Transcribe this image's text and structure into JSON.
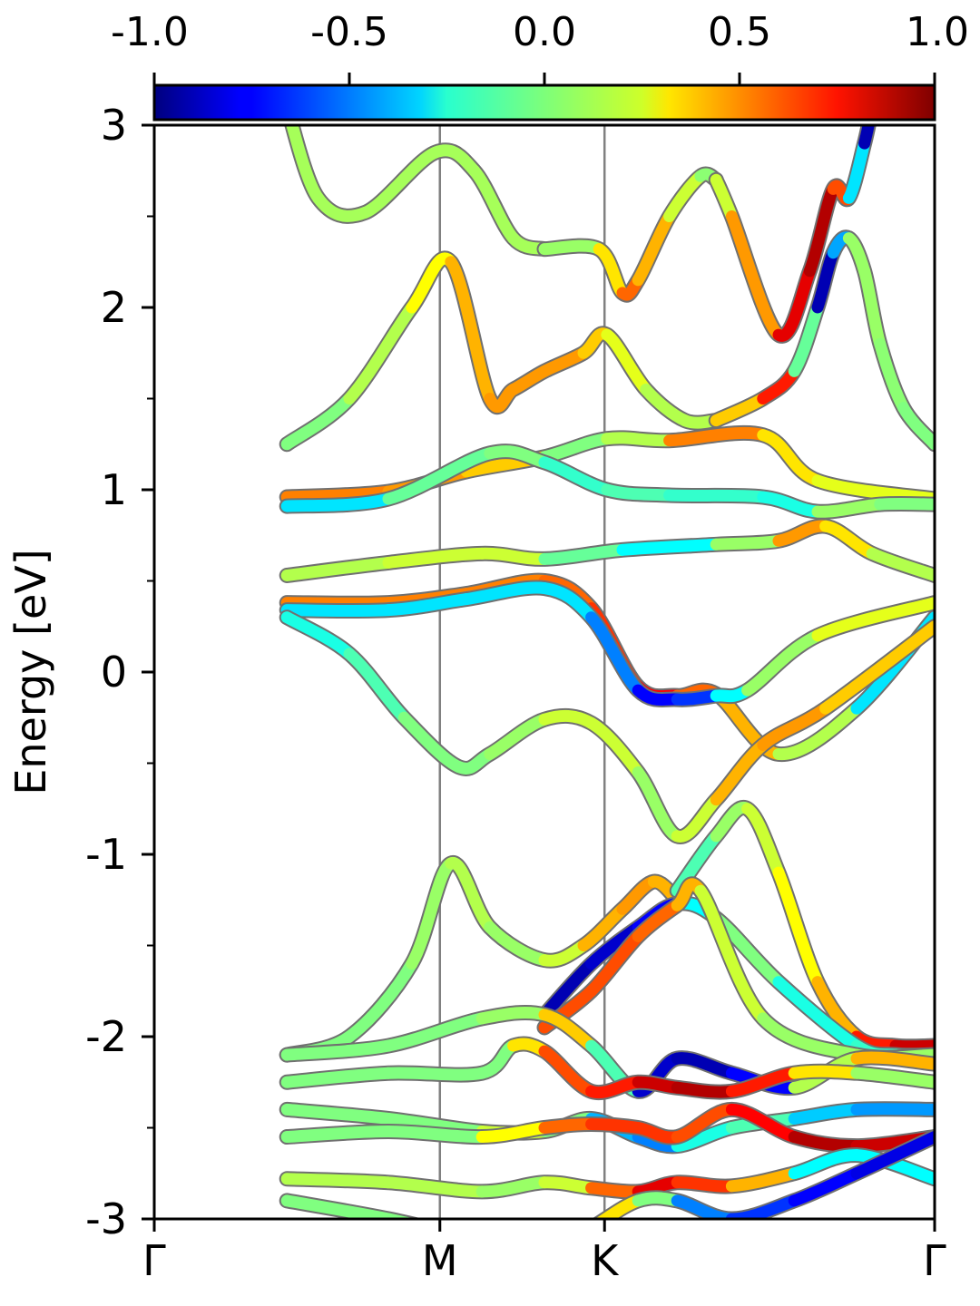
{
  "chart_data": {
    "type": "line",
    "ylabel": "Energy [eV]",
    "ylim": [
      -3,
      3
    ],
    "yticks": [
      "3",
      "2",
      "1",
      "0",
      "-1",
      "-2",
      "-3"
    ],
    "ytick_values": [
      3,
      2,
      1,
      0,
      -1,
      -2,
      -3
    ],
    "ytick_minor_values": [
      2.5,
      1.5,
      0.5,
      -0.5,
      -1.5,
      -2.5
    ],
    "kpath_labels": [
      "Γ",
      "M",
      "K",
      "Γ"
    ],
    "kpath_positions": [
      0,
      0.366,
      0.577,
      1.0
    ],
    "colorbar": {
      "min": -1.0,
      "max": 1.0,
      "ticks": [
        "-1.0",
        "-0.5",
        "0.0",
        "0.5",
        "1.0"
      ],
      "tick_values": [
        -1.0,
        -0.5,
        0.0,
        0.5,
        1.0
      ],
      "colormap": "jet"
    },
    "series": [
      {
        "x": [
          0.17,
          0.21,
          0.27,
          0.36,
          0.41,
          0.46,
          0.5
        ],
        "y": [
          3.1,
          2.6,
          2.52,
          2.85,
          2.75,
          2.38,
          2.32
        ],
        "c": [
          0.05,
          0.1,
          0.05,
          0.1,
          0.05,
          0.1,
          0.05
        ]
      },
      {
        "x": [
          0.5,
          0.57,
          0.6,
          0.62,
          0.66,
          0.7,
          0.72
        ],
        "y": [
          2.32,
          2.32,
          2.08,
          2.15,
          2.5,
          2.72,
          2.7
        ],
        "c": [
          0.1,
          0.0,
          0.6,
          0.5,
          0.3,
          0.0,
          0.05
        ]
      },
      {
        "x": [
          0.72,
          0.74,
          0.8,
          0.84,
          0.87,
          0.89,
          0.91,
          0.92
        ],
        "y": [
          2.7,
          2.5,
          1.85,
          2.2,
          2.65,
          2.6,
          2.9,
          3.1
        ],
        "c": [
          0.1,
          0.2,
          0.7,
          0.9,
          0.9,
          0.3,
          -0.9,
          -0.9
        ]
      },
      {
        "x": [
          0.17,
          0.25,
          0.33,
          0.38,
          0.43,
          0.46,
          0.5,
          0.55,
          0.58,
          0.63,
          0.68,
          0.72
        ],
        "y": [
          1.25,
          1.5,
          2.0,
          2.25,
          1.5,
          1.55,
          1.65,
          1.75,
          1.85,
          1.55,
          1.38,
          1.38
        ],
        "c": [
          0.0,
          0.0,
          0.2,
          0.3,
          0.5,
          0.4,
          0.5,
          0.4,
          0.3,
          0.1,
          0.1,
          0.1
        ]
      },
      {
        "x": [
          0.72,
          0.78,
          0.82,
          0.85,
          0.87,
          0.89,
          0.91,
          0.93,
          0.96,
          1.0
        ],
        "y": [
          1.38,
          1.5,
          1.65,
          2.0,
          2.3,
          2.38,
          2.2,
          1.8,
          1.45,
          1.25
        ],
        "c": [
          0.1,
          0.6,
          0.8,
          -0.9,
          -0.9,
          0.05,
          0.05,
          0.05,
          0.0,
          0.0
        ]
      },
      {
        "x": [
          0.17,
          0.3,
          0.4,
          0.5,
          0.58,
          0.66,
          0.78,
          0.85,
          1.0
        ],
        "y": [
          0.96,
          0.99,
          1.1,
          1.18,
          1.28,
          1.27,
          1.3,
          1.05,
          0.95
        ],
        "c": [
          0.5,
          0.5,
          0.4,
          0.3,
          -0.3,
          0.5,
          0.5,
          0.1,
          0.3
        ]
      },
      {
        "x": [
          0.17,
          0.3,
          0.43,
          0.5,
          0.58,
          0.66,
          0.78,
          0.85,
          0.93,
          1.0
        ],
        "y": [
          0.91,
          0.95,
          1.2,
          1.15,
          1.0,
          0.97,
          0.96,
          0.88,
          0.92,
          0.92
        ],
        "c": [
          -0.3,
          -0.3,
          0.2,
          -0.2,
          -0.1,
          -0.1,
          -0.2,
          -0.2,
          0.3,
          -0.3
        ]
      },
      {
        "x": [
          0.17,
          0.3,
          0.42,
          0.5,
          0.6,
          0.72,
          0.8,
          0.86,
          0.92,
          1.0
        ],
        "y": [
          0.53,
          0.6,
          0.65,
          0.62,
          0.67,
          0.7,
          0.72,
          0.8,
          0.65,
          0.53
        ],
        "c": [
          0.1,
          0.1,
          0.2,
          0.1,
          -0.2,
          -0.3,
          0.4,
          0.5,
          0.1,
          0.1
        ]
      },
      {
        "x": [
          0.17,
          0.3,
          0.4,
          0.5,
          0.56,
          0.62,
          0.67,
          0.72,
          0.8,
          0.9,
          1.0
        ],
        "y": [
          0.38,
          0.38,
          0.43,
          0.5,
          0.35,
          -0.08,
          -0.13,
          -0.12,
          -0.45,
          -0.2,
          0.3
        ],
        "c": [
          0.5,
          0.5,
          0.5,
          0.5,
          0.6,
          0.7,
          0.8,
          0.3,
          0.5,
          -0.3,
          -0.3
        ]
      },
      {
        "x": [
          0.17,
          0.3,
          0.4,
          0.5,
          0.56,
          0.62,
          0.67,
          0.72,
          0.76,
          0.85,
          1.0
        ],
        "y": [
          0.34,
          0.34,
          0.4,
          0.46,
          0.3,
          -0.1,
          -0.15,
          -0.13,
          -0.1,
          0.2,
          0.38
        ],
        "c": [
          -0.3,
          -0.3,
          -0.3,
          -0.3,
          -0.3,
          -0.7,
          -0.8,
          -0.5,
          0.0,
          0.1,
          0.3
        ]
      },
      {
        "x": [
          0.17,
          0.25,
          0.32,
          0.39,
          0.43,
          0.5,
          0.56,
          0.62,
          0.67,
          0.72,
          0.78,
          0.86,
          1.0
        ],
        "y": [
          0.3,
          0.1,
          -0.25,
          -0.52,
          -0.45,
          -0.26,
          -0.28,
          -0.55,
          -0.9,
          -0.7,
          -0.4,
          -0.2,
          0.25
        ],
        "c": [
          -0.2,
          -0.2,
          0.0,
          0.0,
          0.0,
          0.1,
          0.2,
          0.1,
          0.0,
          0.3,
          0.5,
          0.4,
          0.3
        ]
      },
      {
        "x": [
          0.17,
          0.25,
          0.33,
          0.38,
          0.43,
          0.5,
          0.55,
          0.6,
          0.64,
          0.67
        ],
        "y": [
          -2.1,
          -2.0,
          -1.6,
          -1.05,
          -1.4,
          -1.58,
          -1.5,
          -1.3,
          -1.15,
          -1.25
        ],
        "c": [
          0.0,
          0.0,
          0.0,
          0.1,
          0.1,
          0.0,
          0.3,
          0.5,
          0.4,
          0.4
        ]
      },
      {
        "x": [
          0.67,
          0.72,
          0.76,
          0.8,
          0.85,
          0.9,
          0.95,
          1.0
        ],
        "y": [
          -1.2,
          -0.9,
          -0.75,
          -1.1,
          -1.7,
          -2.0,
          -2.05,
          -2.05
        ],
        "c": [
          -0.2,
          0.0,
          0.1,
          0.2,
          0.3,
          0.5,
          0.9,
          0.8
        ]
      },
      {
        "x": [
          0.5,
          0.56,
          0.62,
          0.67,
          0.72,
          0.8,
          0.9,
          0.95,
          1.0
        ],
        "y": [
          -1.88,
          -1.6,
          -1.4,
          -1.27,
          -1.35,
          -1.7,
          -2.05,
          -2.1,
          -2.1
        ],
        "c": [
          -0.9,
          -0.9,
          -0.8,
          -0.7,
          0.2,
          -0.2,
          -0.2,
          -0.1,
          -0.1
        ]
      },
      {
        "x": [
          0.5,
          0.56,
          0.62,
          0.67,
          0.7,
          0.78,
          0.9,
          1.0
        ],
        "y": [
          -1.95,
          -1.75,
          -1.45,
          -1.28,
          -1.2,
          -1.9,
          -2.1,
          -2.1
        ],
        "c": [
          0.6,
          0.6,
          0.6,
          0.5,
          0.3,
          0.0,
          0.1,
          0.0
        ]
      },
      {
        "x": [
          0.17,
          0.3,
          0.42,
          0.5,
          0.56,
          0.62,
          0.67,
          0.74,
          0.82,
          0.9,
          1.0
        ],
        "y": [
          -2.1,
          -2.05,
          -1.9,
          -1.88,
          -2.05,
          -2.3,
          -2.12,
          -2.2,
          -2.28,
          -2.12,
          -2.15
        ],
        "c": [
          0.0,
          0.0,
          0.0,
          0.1,
          0.6,
          -0.8,
          -0.9,
          -0.9,
          -0.6,
          0.8,
          0.0
        ]
      },
      {
        "x": [
          0.17,
          0.3,
          0.42,
          0.46,
          0.5,
          0.56,
          0.62,
          0.67,
          0.74,
          0.82,
          0.9,
          1.0
        ],
        "y": [
          -2.25,
          -2.2,
          -2.2,
          -2.05,
          -2.08,
          -2.3,
          -2.25,
          -2.28,
          -2.3,
          -2.2,
          -2.2,
          -2.25
        ],
        "c": [
          0.0,
          0.0,
          0.0,
          0.0,
          0.6,
          0.6,
          0.8,
          0.9,
          0.9,
          0.5,
          0.1,
          0.0
        ]
      },
      {
        "x": [
          0.17,
          0.3,
          0.42,
          0.5,
          0.56,
          0.62,
          0.67,
          0.74,
          0.82,
          0.9,
          1.0
        ],
        "y": [
          -2.4,
          -2.45,
          -2.52,
          -2.52,
          -2.45,
          -2.55,
          -2.6,
          -2.5,
          -2.45,
          -2.4,
          -2.4
        ],
        "c": [
          0.0,
          0.0,
          0.0,
          0.3,
          -0.3,
          -0.5,
          -0.5,
          0.1,
          -0.3,
          -0.4,
          -0.5
        ]
      },
      {
        "x": [
          0.17,
          0.3,
          0.42,
          0.5,
          0.56,
          0.62,
          0.67,
          0.74,
          0.82,
          0.9,
          1.0
        ],
        "y": [
          -2.55,
          -2.52,
          -2.55,
          -2.5,
          -2.48,
          -2.5,
          -2.55,
          -2.4,
          -2.55,
          -2.6,
          -2.55
        ],
        "c": [
          0.0,
          0.0,
          0.0,
          0.5,
          0.6,
          0.7,
          0.6,
          0.6,
          0.9,
          0.9,
          0.8
        ]
      },
      {
        "x": [
          0.17,
          0.3,
          0.42,
          0.5,
          0.56,
          0.62,
          0.67,
          0.74,
          0.82,
          0.9,
          1.0
        ],
        "y": [
          -2.78,
          -2.8,
          -2.85,
          -2.8,
          -2.83,
          -2.85,
          -2.8,
          -2.82,
          -2.75,
          -2.65,
          -2.78
        ],
        "c": [
          0.1,
          0.1,
          0.1,
          0.0,
          0.3,
          0.8,
          0.8,
          0.5,
          0.3,
          -0.8,
          0.3
        ]
      },
      {
        "x": [
          0.17,
          0.3,
          0.4,
          0.5,
          0.56,
          0.62,
          0.67,
          0.74,
          0.82,
          0.9,
          1.0
        ],
        "y": [
          -2.9,
          -3.0,
          -3.1,
          -3.2,
          -3.05,
          -2.9,
          -2.9,
          -3.0,
          -2.9,
          -2.75,
          -2.55
        ],
        "c": [
          0.0,
          0.0,
          0.0,
          0.0,
          0.2,
          0.4,
          -0.4,
          -0.6,
          -0.7,
          -0.8,
          -0.8
        ]
      }
    ]
  }
}
